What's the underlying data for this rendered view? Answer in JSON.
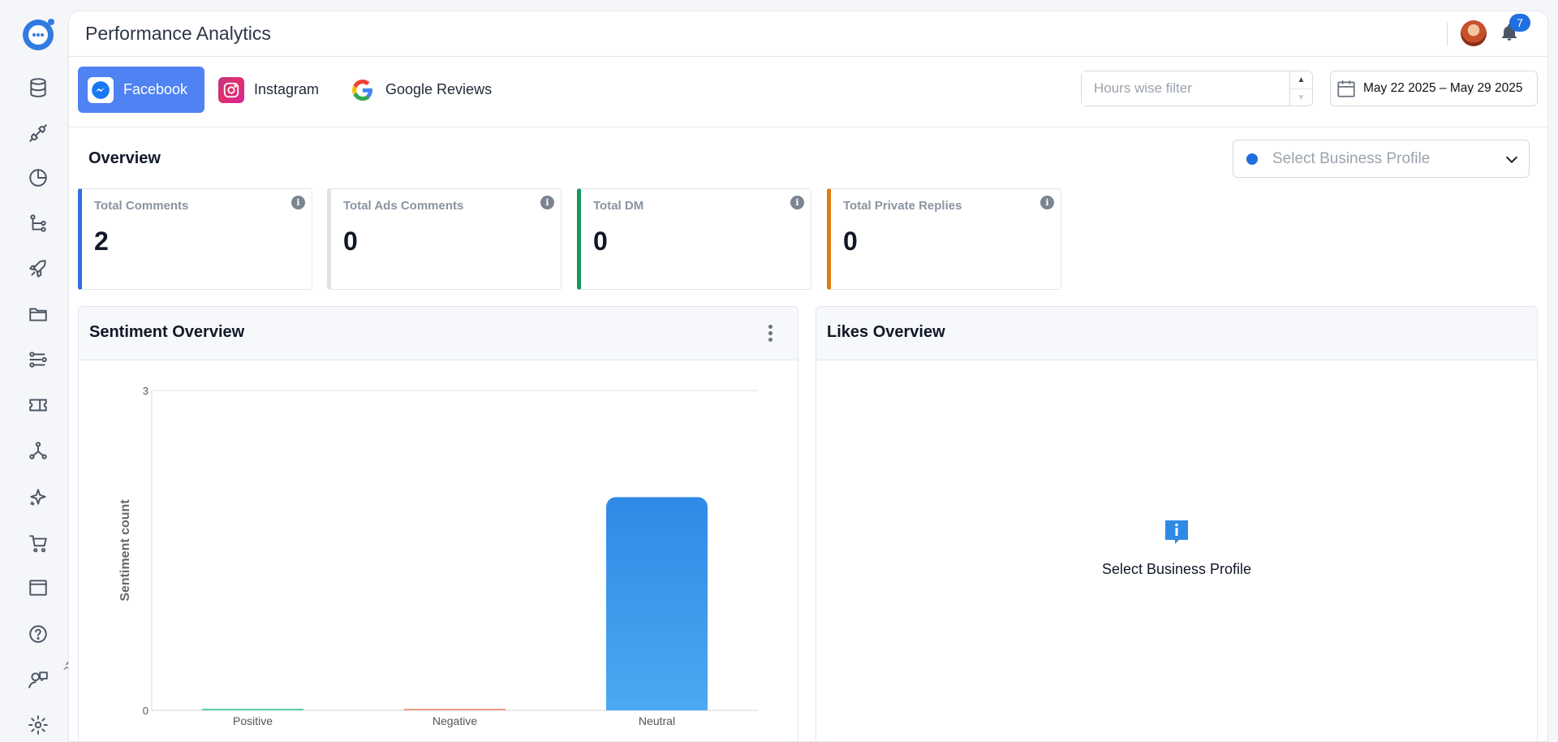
{
  "app": {
    "page_title": "Performance Analytics",
    "notifications_count": "7"
  },
  "sidebar": {
    "icons": [
      "database-icon",
      "plug-icon",
      "pie-chart-icon",
      "flow-icon",
      "rocket-icon",
      "folder-icon",
      "route-icon",
      "ticket-icon",
      "network-icon",
      "sparkle-icon",
      "cart-icon",
      "window-icon",
      "help-icon",
      "support-agent-icon",
      "settings-icon"
    ]
  },
  "tabs": [
    {
      "label": "Facebook",
      "active": true
    },
    {
      "label": "Instagram",
      "active": false
    },
    {
      "label": "Google Reviews",
      "active": false
    }
  ],
  "filters": {
    "hours_placeholder": "Hours wise filter",
    "date_range": "May 22 2025 – May 29 2025"
  },
  "overview": {
    "title": "Overview",
    "business_select_placeholder": "Select Business Profile",
    "stats": [
      {
        "label": "Total Comments",
        "value": "2",
        "color": "#2f6fd8"
      },
      {
        "label": "Total Ads Comments",
        "value": "0",
        "color": "#dfe3e8"
      },
      {
        "label": "Total DM",
        "value": "0",
        "color": "#16975f"
      },
      {
        "label": "Total Private Replies",
        "value": "0",
        "color": "#e07b12"
      }
    ]
  },
  "sentiment_panel": {
    "title": "Sentiment Overview"
  },
  "likes_panel": {
    "title": "Likes Overview",
    "empty_message": "Select Business Profile"
  },
  "chart_data": {
    "type": "bar",
    "title": "",
    "xlabel": "",
    "ylabel": "Sentiment count",
    "categories": [
      "Positive",
      "Negative",
      "Neutral"
    ],
    "values": [
      0,
      0,
      2
    ],
    "colors": [
      "#5fd0a4",
      "#f59a86",
      "#3a92ea"
    ],
    "ylim": [
      0,
      3
    ],
    "yticks": [
      "0",
      "3"
    ],
    "grid": false
  }
}
